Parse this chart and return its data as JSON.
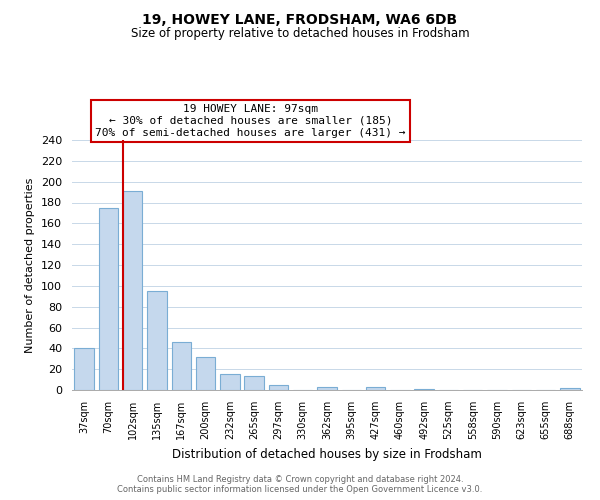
{
  "title": "19, HOWEY LANE, FRODSHAM, WA6 6DB",
  "subtitle": "Size of property relative to detached houses in Frodsham",
  "xlabel": "Distribution of detached houses by size in Frodsham",
  "ylabel": "Number of detached properties",
  "bar_labels": [
    "37sqm",
    "70sqm",
    "102sqm",
    "135sqm",
    "167sqm",
    "200sqm",
    "232sqm",
    "265sqm",
    "297sqm",
    "330sqm",
    "362sqm",
    "395sqm",
    "427sqm",
    "460sqm",
    "492sqm",
    "525sqm",
    "558sqm",
    "590sqm",
    "623sqm",
    "655sqm",
    "688sqm"
  ],
  "bar_values": [
    40,
    175,
    191,
    95,
    46,
    32,
    15,
    13,
    5,
    0,
    3,
    0,
    3,
    0,
    1,
    0,
    0,
    0,
    0,
    0,
    2
  ],
  "bar_color": "#c5d8ed",
  "bar_edge_color": "#7aadd4",
  "property_line_idx": 2,
  "property_line_color": "#cc0000",
  "ylim": [
    0,
    240
  ],
  "yticks": [
    0,
    20,
    40,
    60,
    80,
    100,
    120,
    140,
    160,
    180,
    200,
    220,
    240
  ],
  "annotation_title": "19 HOWEY LANE: 97sqm",
  "annotation_line1": "← 30% of detached houses are smaller (185)",
  "annotation_line2": "70% of semi-detached houses are larger (431) →",
  "footer_line1": "Contains HM Land Registry data © Crown copyright and database right 2024.",
  "footer_line2": "Contains public sector information licensed under the Open Government Licence v3.0.",
  "background_color": "#ffffff",
  "grid_color": "#c8d8e8"
}
